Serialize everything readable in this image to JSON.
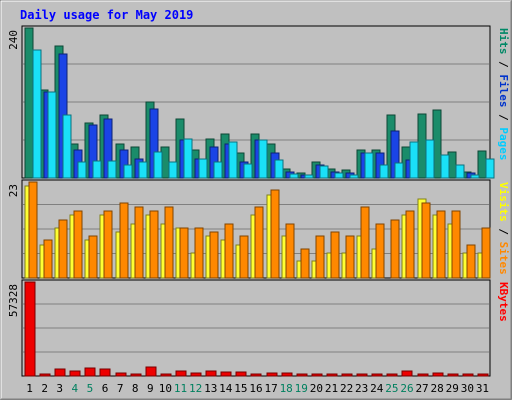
{
  "chart_data": [
    {
      "type": "bar",
      "title": "Daily usage for May 2019",
      "categories": [
        "1",
        "2",
        "3",
        "4",
        "5",
        "6",
        "7",
        "8",
        "9",
        "10",
        "11",
        "12",
        "13",
        "14",
        "15",
        "16",
        "17",
        "18",
        "19",
        "20",
        "21",
        "22",
        "23",
        "24",
        "25",
        "26",
        "27",
        "28",
        "29",
        "30",
        "31"
      ],
      "weekend_days": [
        "4",
        "5",
        "11",
        "12",
        "18",
        "19",
        "25",
        "26"
      ],
      "ylim": [
        0,
        240
      ],
      "y_tick_labels": [
        "240"
      ],
      "legend": [
        {
          "text": "Pages",
          "color": "#00ccff"
        },
        {
          "text": "Files",
          "color": "#0033cc"
        },
        {
          "text": "Hits",
          "color": "#008866"
        }
      ],
      "series": [
        {
          "name": "Hits",
          "color": "#1a8c6a",
          "values": [
            240,
            140,
            211,
            55,
            88,
            100,
            55,
            50,
            122,
            50,
            95,
            45,
            62,
            71,
            40,
            71,
            55,
            15,
            8,
            25,
            15,
            13,
            45,
            45,
            101,
            50,
            102,
            108,
            42,
            10,
            44
          ]
        },
        {
          "name": "Files",
          "color": "#1a44e6",
          "values": [
            0,
            138,
            198,
            45,
            84,
            95,
            45,
            30,
            110,
            0,
            60,
            31,
            50,
            55,
            25,
            60,
            40,
            10,
            5,
            20,
            10,
            8,
            40,
            40,
            75,
            29,
            0,
            0,
            0,
            8,
            0
          ]
        },
        {
          "name": "Pages",
          "color": "#1ae0f7",
          "values": [
            205,
            137,
            100,
            25,
            27,
            27,
            20,
            25,
            42,
            25,
            62,
            30,
            26,
            57,
            23,
            60,
            29,
            6,
            5,
            19,
            8,
            5,
            40,
            20,
            24,
            58,
            60,
            37,
            20,
            5,
            30
          ]
        }
      ]
    },
    {
      "type": "bar",
      "ylim": [
        0,
        23
      ],
      "y_tick_labels": [
        "23"
      ],
      "legend": [
        {
          "text": "Sites",
          "color": "#ff8800"
        },
        {
          "text": "Visits",
          "color": "#ffff00"
        }
      ],
      "series": [
        {
          "name": "Visits",
          "color": "#ffff33",
          "values": [
            22,
            8,
            12,
            15,
            9,
            15,
            11,
            13,
            15,
            13,
            12,
            6,
            10,
            9,
            8,
            15,
            20,
            10,
            4,
            4,
            6,
            6,
            10,
            7,
            0,
            15,
            19,
            15,
            13,
            6,
            6
          ]
        },
        {
          "name": "Sites",
          "color": "#ff8800",
          "values": [
            23,
            9,
            14,
            16,
            10,
            16,
            18,
            17,
            16,
            17,
            12,
            12,
            11,
            13,
            10,
            17,
            21,
            13,
            7,
            10,
            11,
            10,
            17,
            13,
            14,
            16,
            18,
            16,
            16,
            8,
            12
          ]
        }
      ]
    },
    {
      "type": "bar",
      "ylim": [
        0,
        57328
      ],
      "y_tick_labels": [
        "57328"
      ],
      "legend": [
        {
          "text": "KBytes",
          "color": "#ff0000"
        }
      ],
      "series": [
        {
          "name": "KBytes",
          "color": "#ee0000",
          "values": [
            57328,
            1200,
            4500,
            2800,
            4800,
            4500,
            2000,
            1200,
            5200,
            1000,
            2800,
            2000,
            3300,
            2400,
            2700,
            1000,
            1600,
            2000,
            1000,
            1000,
            1200,
            1000,
            1000,
            1200,
            1500,
            2800,
            1200,
            2000,
            1000,
            1000,
            1500
          ]
        }
      ]
    }
  ]
}
